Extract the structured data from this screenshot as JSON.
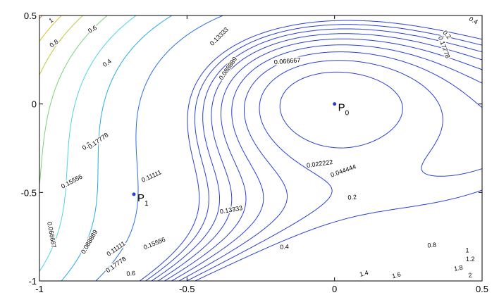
{
  "chart_data": {
    "type": "contour",
    "title": "",
    "xlabel": "",
    "ylabel": "",
    "xlim": [
      -1,
      0.5
    ],
    "ylim": [
      -1,
      0.5
    ],
    "x_ticks": [
      "-1",
      "-0.5",
      "0",
      "0.5"
    ],
    "y_ticks": [
      "0.5",
      "0",
      "-0.5",
      "-1"
    ],
    "grid": false,
    "colors": {
      "low": "#2a3fd6",
      "mid": "#4fd1e6",
      "high": "#d43a2c",
      "highest": "#5a1010"
    },
    "contour_levels": [
      0.022222,
      0.044444,
      0.066667,
      0.088889,
      0.11111,
      0.13333,
      0.15556,
      0.17778,
      0.2,
      0.4,
      0.6,
      0.8,
      1,
      1.2,
      1.4,
      1.6,
      1.8,
      2
    ],
    "contour_labels": [
      {
        "text": "0.022222",
        "x": -0.05,
        "y": -0.34,
        "angle": -8
      },
      {
        "text": "0.044444",
        "x": 0.03,
        "y": -0.38,
        "angle": -20
      },
      {
        "text": "0.066667",
        "x": -0.16,
        "y": 0.24,
        "angle": -5
      },
      {
        "text": "0.088889",
        "x": -0.36,
        "y": 0.2,
        "angle": -55
      },
      {
        "text": "0.13333",
        "x": -0.39,
        "y": 0.38,
        "angle": -45
      },
      {
        "text": "0.17778",
        "x": 0.37,
        "y": 0.32,
        "angle": 70
      },
      {
        "text": "0.2",
        "x": 0.38,
        "y": 0.39,
        "angle": 50
      },
      {
        "text": "0.4",
        "x": 0.47,
        "y": 0.47,
        "angle": 30
      },
      {
        "text": "0.2",
        "x": -0.84,
        "y": -0.24,
        "angle": -35
      },
      {
        "text": "0.17778",
        "x": -0.8,
        "y": -0.21,
        "angle": -35
      },
      {
        "text": "0.15556",
        "x": -0.89,
        "y": -0.44,
        "angle": -28
      },
      {
        "text": "0.11111",
        "x": -0.62,
        "y": -0.41,
        "angle": -25
      },
      {
        "text": "0.13333",
        "x": -0.35,
        "y": -0.6,
        "angle": -10
      },
      {
        "text": "0.2",
        "x": 0.06,
        "y": -0.53,
        "angle": -5
      },
      {
        "text": "0.15556",
        "x": -0.61,
        "y": -0.79,
        "angle": -22
      },
      {
        "text": "0.11111",
        "x": -0.74,
        "y": -0.82,
        "angle": -35
      },
      {
        "text": "0.17778",
        "x": -0.74,
        "y": -0.91,
        "angle": -35
      },
      {
        "text": "0.088889",
        "x": -0.83,
        "y": -0.78,
        "angle": -60
      },
      {
        "text": "0.066667",
        "x": -0.96,
        "y": -0.74,
        "angle": 80
      },
      {
        "text": "0.4",
        "x": -0.17,
        "y": -0.81,
        "angle": -5
      },
      {
        "text": "0.6",
        "x": -0.69,
        "y": -0.96,
        "angle": -5
      },
      {
        "text": "0.6",
        "x": -0.82,
        "y": 0.42,
        "angle": -30
      },
      {
        "text": "0.4",
        "x": -0.77,
        "y": 0.23,
        "angle": -35
      },
      {
        "text": "0.8",
        "x": -0.95,
        "y": 0.34,
        "angle": -35
      },
      {
        "text": "1",
        "x": -0.96,
        "y": 0.47,
        "angle": -35
      },
      {
        "text": "0.8",
        "x": 0.33,
        "y": -0.8,
        "angle": -5
      },
      {
        "text": "1",
        "x": 0.45,
        "y": -0.83,
        "angle": 0
      },
      {
        "text": "1.2",
        "x": 0.46,
        "y": -0.88,
        "angle": 0
      },
      {
        "text": "1.4",
        "x": 0.1,
        "y": -0.96,
        "angle": -15
      },
      {
        "text": "1.6",
        "x": 0.21,
        "y": -0.97,
        "angle": -15
      },
      {
        "text": "1.8",
        "x": 0.42,
        "y": -0.93,
        "angle": -10
      },
      {
        "text": "2",
        "x": 0.46,
        "y": -0.97,
        "angle": -10
      }
    ],
    "points": [
      {
        "name": "P",
        "sub": "0",
        "x": 0.0,
        "y": 0.0
      },
      {
        "name": "P",
        "sub": "1",
        "x": -0.68,
        "y": -0.51
      }
    ]
  }
}
